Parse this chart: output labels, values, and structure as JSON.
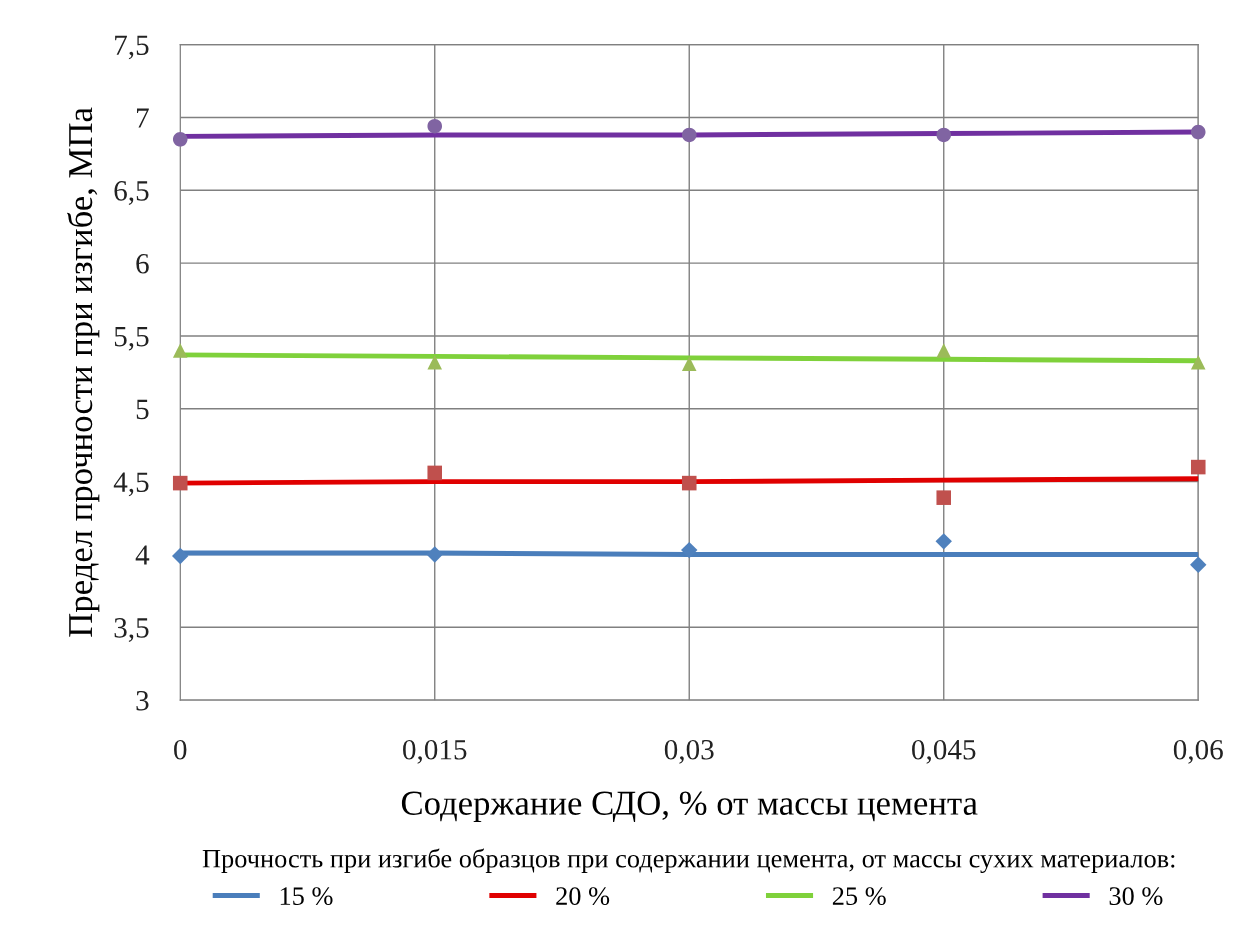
{
  "chart_data": {
    "type": "scatter",
    "xlabel": "Содержание СДО, % от массы цемента",
    "ylabel": "Предел прочности при изгибе, МПа",
    "legend_title": "Прочность при изгибе образцов при содержании цемента, от массы сухих материалов:",
    "x": [
      0,
      0.015,
      0.03,
      0.045,
      0.06
    ],
    "xlim": [
      0,
      0.06
    ],
    "xticks": [
      0,
      {
        "value": 0.015,
        "label": "0,015"
      },
      {
        "value": 0.03,
        "label": "0,03"
      },
      {
        "value": 0.045,
        "label": "0,045"
      },
      {
        "value": 0.06,
        "label": "0,06"
      }
    ],
    "ylim": [
      3,
      7.5
    ],
    "yticks": [
      3,
      {
        "value": 3.5,
        "label": "3,5"
      },
      4,
      {
        "value": 4.5,
        "label": "4,5"
      },
      5,
      {
        "value": 5.5,
        "label": "5,5"
      },
      6,
      {
        "value": 6.5,
        "label": "6,5"
      },
      7,
      {
        "value": 7.5,
        "label": "7,5"
      }
    ],
    "grid": true,
    "legend": "bottom",
    "series": [
      {
        "marker": "diamond",
        "color": "#4f81bd",
        "values": [
          3.99,
          4.0,
          4.03,
          4.09,
          3.93
        ]
      },
      {
        "marker": "square",
        "color": "#c0504d",
        "values": [
          4.49,
          4.56,
          4.49,
          4.39,
          4.6
        ]
      },
      {
        "marker": "triangle",
        "color": "#9bbb59",
        "values": [
          5.4,
          5.32,
          5.31,
          5.4,
          5.32
        ]
      },
      {
        "marker": "circle",
        "color": "#8064a2",
        "values": [
          6.85,
          6.94,
          6.88,
          6.88,
          6.9
        ]
      },
      {
        "type": "line",
        "name": "15 %",
        "color": "#4a7ebb",
        "values": [
          4.01,
          4.01,
          4.0,
          4.0,
          4.0
        ]
      },
      {
        "type": "line",
        "name": "20 %",
        "color": "#e00000",
        "values": [
          4.49,
          4.5,
          4.5,
          4.51,
          4.52
        ]
      },
      {
        "type": "line",
        "name": "25 %",
        "color": "#7fd13b",
        "values": [
          5.37,
          5.36,
          5.35,
          5.34,
          5.33
        ]
      },
      {
        "type": "line",
        "name": "30 %",
        "color": "#7030a0",
        "values": [
          6.87,
          6.88,
          6.88,
          6.89,
          6.9
        ]
      }
    ]
  }
}
